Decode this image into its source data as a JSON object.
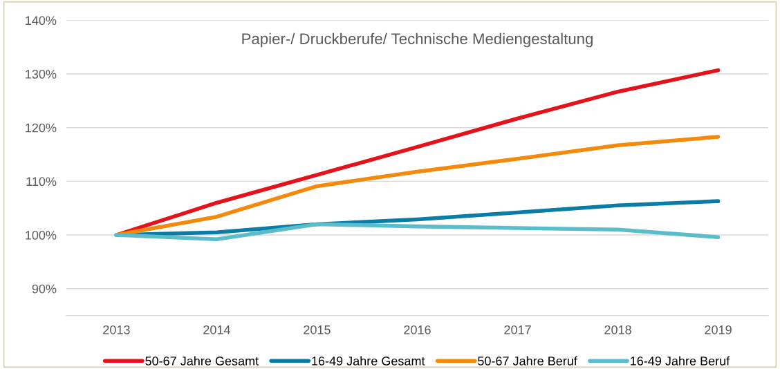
{
  "chart_data": {
    "type": "line",
    "title": "Papier-/ Druckberufe/ Technische Mediengestaltung",
    "categories": [
      "2013",
      "2014",
      "2015",
      "2016",
      "2017",
      "2018",
      "2019"
    ],
    "series": [
      {
        "name": "50-67 Jahre Gesamt",
        "color": "#e3121b",
        "values": [
          100,
          106.0,
          111.2,
          116.4,
          121.7,
          126.7,
          130.7
        ]
      },
      {
        "name": "16-49 Jahre Gesamt",
        "color": "#0a7ca5",
        "values": [
          100,
          100.5,
          102.0,
          102.9,
          104.2,
          105.5,
          106.3
        ]
      },
      {
        "name": "50-67 Jahre Beruf",
        "color": "#f38a0c",
        "values": [
          100,
          103.4,
          109.1,
          111.8,
          114.2,
          116.7,
          118.3
        ]
      },
      {
        "name": "16-49 Jahre Beruf",
        "color": "#5bbccb",
        "values": [
          100,
          99.2,
          102.0,
          101.6,
          101.3,
          101.0,
          99.6
        ]
      }
    ],
    "ylim": [
      85,
      140
    ],
    "yticks": [
      {
        "value": 90,
        "label": "90%"
      },
      {
        "value": 100,
        "label": "100%"
      },
      {
        "value": 110,
        "label": "110%"
      },
      {
        "value": 120,
        "label": "120%"
      },
      {
        "value": 130,
        "label": "130%"
      },
      {
        "value": 140,
        "label": "140%"
      }
    ],
    "grid": "y",
    "legend": "bottom",
    "marker": "none",
    "line_style": "solid"
  }
}
